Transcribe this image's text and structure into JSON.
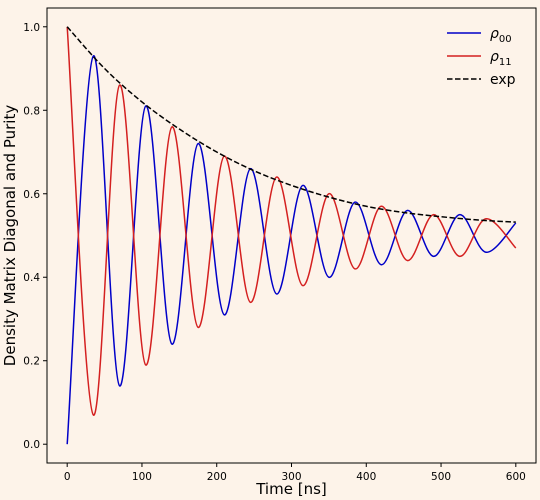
{
  "chart_data": {
    "type": "line",
    "title": "",
    "xlabel": "Time [ns]",
    "ylabel": "Density Matrix Diagonal and Purity",
    "xlim": [
      -27,
      627
    ],
    "ylim": [
      -0.045,
      1.045
    ],
    "xticks": [
      0,
      100,
      200,
      300,
      400,
      500,
      600
    ],
    "yticks": [
      0.0,
      0.2,
      0.4,
      0.6,
      0.8,
      1.0
    ],
    "xtick_labels": [
      "0",
      "100",
      "200",
      "300",
      "400",
      "500",
      "600"
    ],
    "ytick_labels": [
      "0.0",
      "0.2",
      "0.4",
      "0.6",
      "0.8",
      "1.0"
    ],
    "grid": false,
    "legend_position": "top-right",
    "series": [
      {
        "name": "ρ00",
        "legend_base": "ρ",
        "legend_sub": "00",
        "color": "#0000c8",
        "style": "solid",
        "x": [
          0,
          35,
          70,
          105,
          140,
          175,
          210,
          245,
          280,
          315,
          350,
          385,
          420,
          455,
          490,
          525,
          560,
          600
        ],
        "y": [
          0.0,
          0.93,
          0.14,
          0.81,
          0.24,
          0.72,
          0.31,
          0.66,
          0.36,
          0.62,
          0.4,
          0.58,
          0.43,
          0.56,
          0.45,
          0.55,
          0.46,
          0.53
        ]
      },
      {
        "name": "ρ11",
        "legend_base": "ρ",
        "legend_sub": "11",
        "color": "#d42020",
        "style": "solid",
        "x": [
          0,
          35,
          70,
          105,
          140,
          175,
          210,
          245,
          280,
          315,
          350,
          385,
          420,
          455,
          490,
          525,
          560,
          600
        ],
        "y": [
          1.0,
          0.07,
          0.86,
          0.19,
          0.76,
          0.28,
          0.69,
          0.34,
          0.64,
          0.38,
          0.6,
          0.42,
          0.57,
          0.44,
          0.55,
          0.45,
          0.54,
          0.47
        ]
      },
      {
        "name": "exp",
        "legend_base": "exp",
        "legend_sub": "",
        "color": "#000000",
        "style": "dashed",
        "x": [
          0,
          50,
          100,
          150,
          200,
          250,
          300,
          350,
          400,
          450,
          500,
          550,
          600
        ],
        "y": [
          1.0,
          0.9,
          0.82,
          0.755,
          0.7,
          0.655,
          0.62,
          0.592,
          0.57,
          0.555,
          0.545,
          0.537,
          0.532
        ]
      }
    ]
  }
}
